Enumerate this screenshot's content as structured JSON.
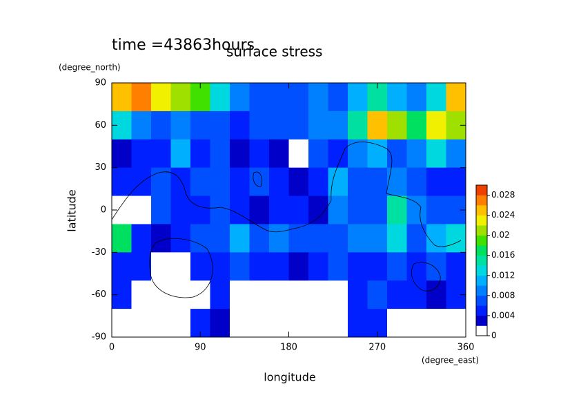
{
  "chart_data": {
    "type": "contour",
    "title": "surface stress",
    "subtitle": "time =43863hours",
    "x_label": "longitude",
    "x_units": "(degree_east)",
    "y_label": "latitude",
    "y_units": "(degree_north)",
    "xlim": [
      0,
      360
    ],
    "xticks": [
      0,
      90,
      180,
      270,
      360
    ],
    "ylim": [
      -90,
      90
    ],
    "yticks": [
      90,
      60,
      30,
      0,
      -30,
      -60,
      -90
    ],
    "lon_bins": [
      0,
      20,
      40,
      60,
      80,
      100,
      120,
      140,
      160,
      180,
      200,
      220,
      240,
      260,
      280,
      300,
      320,
      340,
      360
    ],
    "lat_bins": [
      90,
      70,
      50,
      30,
      10,
      -10,
      -30,
      -50,
      -70,
      -90
    ],
    "z": [
      [
        0.024,
        0.026,
        0.022,
        0.02,
        0.018,
        0.012,
        0.008,
        0.006,
        0.006,
        0.006,
        0.008,
        0.006,
        0.01,
        0.014,
        0.01,
        0.008,
        0.012,
        0.024
      ],
      [
        0.012,
        0.008,
        0.006,
        0.008,
        0.006,
        0.006,
        0.004,
        0.006,
        0.006,
        0.006,
        0.008,
        0.008,
        0.014,
        0.024,
        0.02,
        0.016,
        0.022,
        0.02
      ],
      [
        0.002,
        0.004,
        0.004,
        0.01,
        0.004,
        0.006,
        0.002,
        0.004,
        0.002,
        0.001,
        0.006,
        0.004,
        0.008,
        0.01,
        0.006,
        0.008,
        0.012,
        0.008
      ],
      [
        0.004,
        0.004,
        0.006,
        0.004,
        0.006,
        0.006,
        0.004,
        0.006,
        0.004,
        0.002,
        0.004,
        0.01,
        0.006,
        0.006,
        0.008,
        0.006,
        0.004,
        0.004
      ],
      [
        0.001,
        0.001,
        0.006,
        0.004,
        0.004,
        0.006,
        0.004,
        0.002,
        0.004,
        0.004,
        0.002,
        0.008,
        0.006,
        0.006,
        0.014,
        0.008,
        0.006,
        0.006
      ],
      [
        0.016,
        0.004,
        0.002,
        0.004,
        0.006,
        0.006,
        0.01,
        0.006,
        0.008,
        0.006,
        0.006,
        0.006,
        0.008,
        0.008,
        0.012,
        0.006,
        0.01,
        0.012
      ],
      [
        0.004,
        0.004,
        0.001,
        0.001,
        0.004,
        0.004,
        0.006,
        0.004,
        0.004,
        0.002,
        0.004,
        0.006,
        0.004,
        0.004,
        0.006,
        0.004,
        0.006,
        0.004
      ],
      [
        0.004,
        0.001,
        0.001,
        0.001,
        0.001,
        0.004,
        0.001,
        0.001,
        0.001,
        0.001,
        0.001,
        0.001,
        0.004,
        0.006,
        0.004,
        0.004,
        0.002,
        0.004
      ],
      [
        0.001,
        0.001,
        0.001,
        0.001,
        0.004,
        0.002,
        0.001,
        0.001,
        0.001,
        0.001,
        0.001,
        0.001,
        0.004,
        0.004,
        0.001,
        0.001,
        0.001,
        0.001
      ]
    ],
    "colorbar": {
      "lim": [
        0,
        0.03
      ],
      "ticks": [
        0,
        0.004,
        0.008,
        0.012,
        0.016,
        0.02,
        0.024,
        0.028
      ],
      "colors": [
        "#ffffff",
        "#0000c8",
        "#0020ff",
        "#0050ff",
        "#0080ff",
        "#00b0ff",
        "#00d8e0",
        "#00e0a0",
        "#00e060",
        "#40e000",
        "#a0e000",
        "#f0f000",
        "#ffc000",
        "#ff8000",
        "#f04000"
      ]
    }
  }
}
